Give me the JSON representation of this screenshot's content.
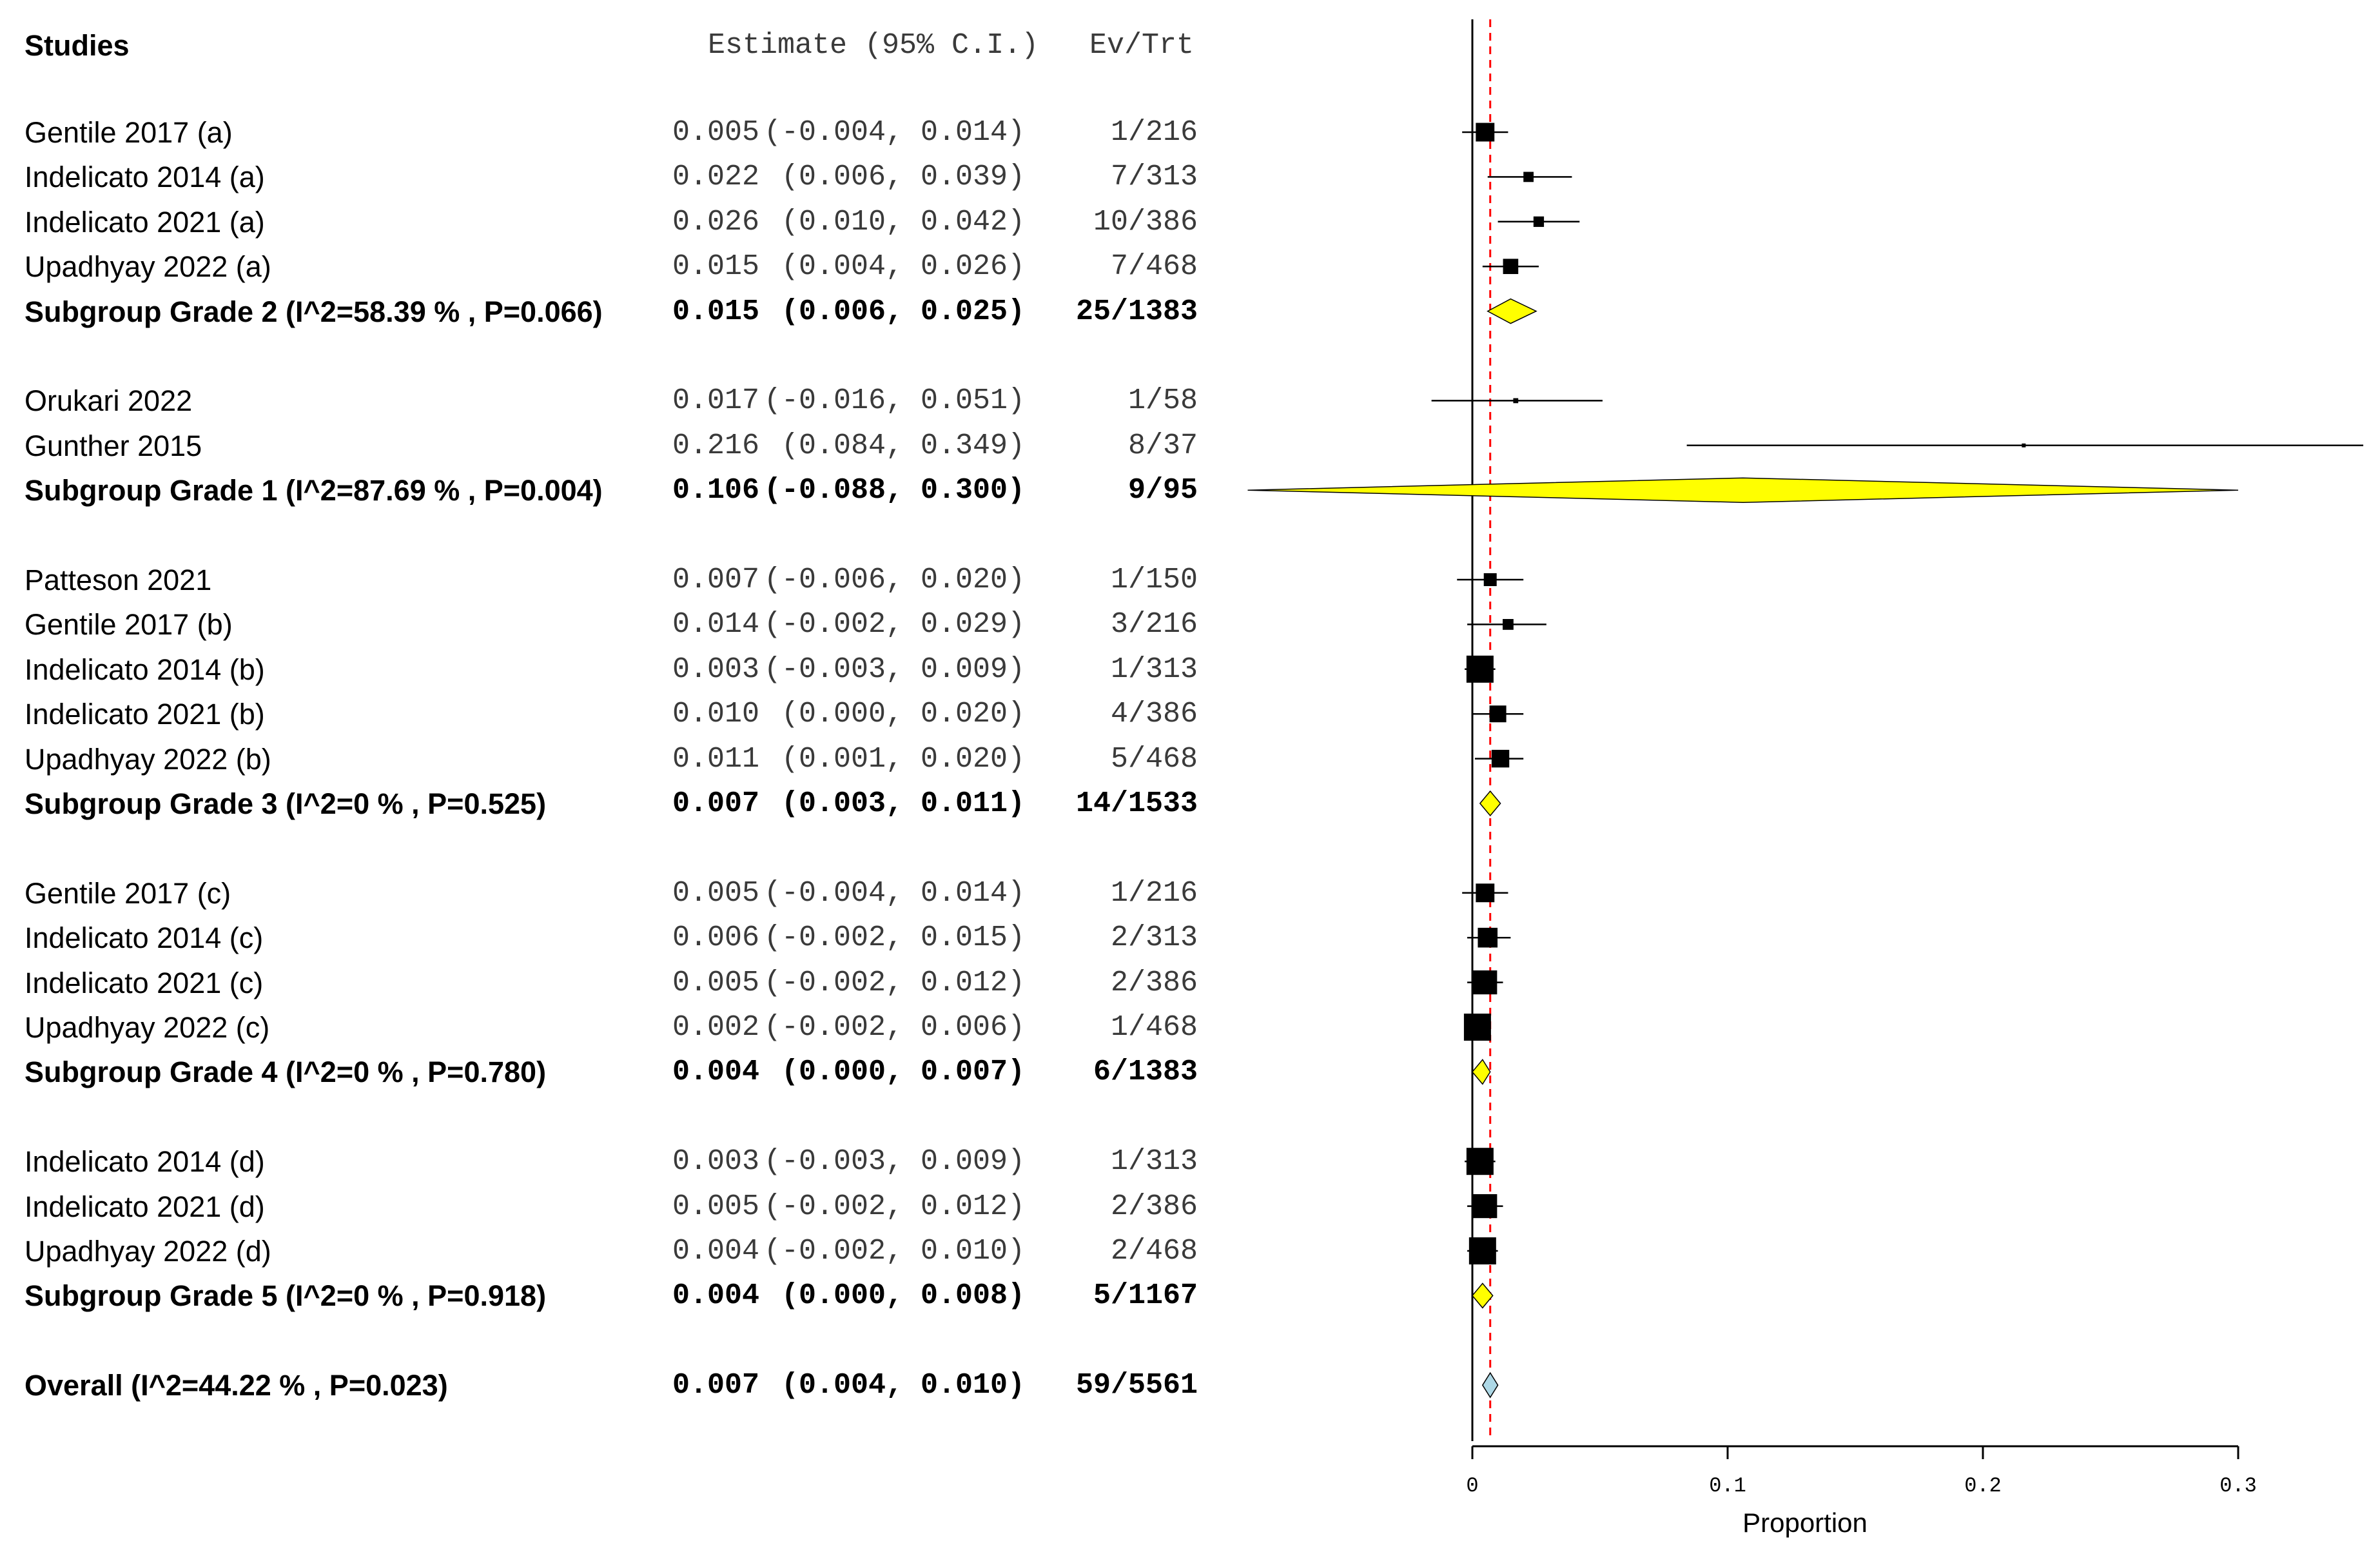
{
  "header": {
    "studies_label": "Studies",
    "estimate_label": "Estimate (95% C.I.)",
    "evtrt_label": "Ev/Trt"
  },
  "colors": {
    "subgroup_diamond": "#ffff00",
    "overall_diamond": "#add8e6",
    "reference_line": "#ff0000",
    "marker": "#000000"
  },
  "chart_data": {
    "type": "forest",
    "xlabel": "Proportion",
    "xlim": [
      0,
      0.3
    ],
    "xticks": [
      0,
      0.1,
      0.2,
      0.3
    ],
    "xtick_labels": [
      "0",
      "0.1",
      "0.2",
      "0.3"
    ],
    "reference_value": 0.007,
    "rows": [
      {
        "kind": "study",
        "label": "Gentile 2017 (a)",
        "est": 0.005,
        "lo": -0.004,
        "hi": 0.014,
        "est_text": "0.005",
        "ci_text": "(-0.004, 0.014)",
        "evtrt": "1/216"
      },
      {
        "kind": "study",
        "label": "Indelicato 2014 (a)",
        "est": 0.022,
        "lo": 0.006,
        "hi": 0.039,
        "est_text": "0.022",
        "ci_text": " (0.006, 0.039)",
        "evtrt": "7/313"
      },
      {
        "kind": "study",
        "label": "Indelicato 2021 (a)",
        "est": 0.026,
        "lo": 0.01,
        "hi": 0.042,
        "est_text": "0.026",
        "ci_text": " (0.010, 0.042)",
        "evtrt": "10/386"
      },
      {
        "kind": "study",
        "label": "Upadhyay 2022 (a)",
        "est": 0.015,
        "lo": 0.004,
        "hi": 0.026,
        "est_text": "0.015",
        "ci_text": " (0.004, 0.026)",
        "evtrt": "7/468"
      },
      {
        "kind": "subgroup",
        "label": "Subgroup Grade 2 (I^2=58.39 % , P=0.066)",
        "est": 0.015,
        "lo": 0.006,
        "hi": 0.025,
        "est_text": "0.015",
        "ci_text": " (0.006, 0.025)",
        "evtrt": "25/1383"
      },
      {
        "kind": "gap"
      },
      {
        "kind": "study",
        "label": "Orukari 2022",
        "est": 0.017,
        "lo": -0.016,
        "hi": 0.051,
        "est_text": "0.017",
        "ci_text": "(-0.016, 0.051)",
        "evtrt": "1/58"
      },
      {
        "kind": "study",
        "label": "Gunther 2015",
        "est": 0.216,
        "lo": 0.084,
        "hi": 0.349,
        "est_text": "0.216",
        "ci_text": " (0.084, 0.349)",
        "evtrt": "8/37"
      },
      {
        "kind": "subgroup",
        "label": "Subgroup Grade 1 (I^2=87.69 % , P=0.004)",
        "est": 0.106,
        "lo": -0.088,
        "hi": 0.3,
        "est_text": "0.106",
        "ci_text": "(-0.088, 0.300)",
        "evtrt": "9/95"
      },
      {
        "kind": "gap"
      },
      {
        "kind": "study",
        "label": "Patteson 2021",
        "est": 0.007,
        "lo": -0.006,
        "hi": 0.02,
        "est_text": "0.007",
        "ci_text": "(-0.006, 0.020)",
        "evtrt": "1/150"
      },
      {
        "kind": "study",
        "label": "Gentile 2017 (b)",
        "est": 0.014,
        "lo": -0.002,
        "hi": 0.029,
        "est_text": "0.014",
        "ci_text": "(-0.002, 0.029)",
        "evtrt": "3/216"
      },
      {
        "kind": "study",
        "label": "Indelicato 2014 (b)",
        "est": 0.003,
        "lo": -0.003,
        "hi": 0.009,
        "est_text": "0.003",
        "ci_text": "(-0.003, 0.009)",
        "evtrt": "1/313"
      },
      {
        "kind": "study",
        "label": "Indelicato 2021 (b)",
        "est": 0.01,
        "lo": 0.0,
        "hi": 0.02,
        "est_text": "0.010",
        "ci_text": " (0.000, 0.020)",
        "evtrt": "4/386"
      },
      {
        "kind": "study",
        "label": "Upadhyay 2022 (b)",
        "est": 0.011,
        "lo": 0.001,
        "hi": 0.02,
        "est_text": "0.011",
        "ci_text": " (0.001, 0.020)",
        "evtrt": "5/468"
      },
      {
        "kind": "subgroup",
        "label": "Subgroup Grade 3 (I^2=0 % , P=0.525)",
        "est": 0.007,
        "lo": 0.003,
        "hi": 0.011,
        "est_text": "0.007",
        "ci_text": " (0.003, 0.011)",
        "evtrt": "14/1533"
      },
      {
        "kind": "gap"
      },
      {
        "kind": "study",
        "label": "Gentile 2017 (c)",
        "est": 0.005,
        "lo": -0.004,
        "hi": 0.014,
        "est_text": "0.005",
        "ci_text": "(-0.004, 0.014)",
        "evtrt": "1/216"
      },
      {
        "kind": "study",
        "label": "Indelicato 2014 (c)",
        "est": 0.006,
        "lo": -0.002,
        "hi": 0.015,
        "est_text": "0.006",
        "ci_text": "(-0.002, 0.015)",
        "evtrt": "2/313"
      },
      {
        "kind": "study",
        "label": "Indelicato 2021 (c)",
        "est": 0.005,
        "lo": -0.002,
        "hi": 0.012,
        "est_text": "0.005",
        "ci_text": "(-0.002, 0.012)",
        "evtrt": "2/386"
      },
      {
        "kind": "study",
        "label": "Upadhyay 2022 (c)",
        "est": 0.002,
        "lo": -0.002,
        "hi": 0.006,
        "est_text": "0.002",
        "ci_text": "(-0.002, 0.006)",
        "evtrt": "1/468"
      },
      {
        "kind": "subgroup",
        "label": "Subgroup Grade 4 (I^2=0 % , P=0.780)",
        "est": 0.004,
        "lo": 0.0,
        "hi": 0.007,
        "est_text": "0.004",
        "ci_text": " (0.000, 0.007)",
        "evtrt": "6/1383"
      },
      {
        "kind": "gap"
      },
      {
        "kind": "study",
        "label": "Indelicato 2014 (d)",
        "est": 0.003,
        "lo": -0.003,
        "hi": 0.009,
        "est_text": "0.003",
        "ci_text": "(-0.003, 0.009)",
        "evtrt": "1/313"
      },
      {
        "kind": "study",
        "label": "Indelicato 2021 (d)",
        "est": 0.005,
        "lo": -0.002,
        "hi": 0.012,
        "est_text": "0.005",
        "ci_text": "(-0.002, 0.012)",
        "evtrt": "2/386"
      },
      {
        "kind": "study",
        "label": "Upadhyay 2022 (d)",
        "est": 0.004,
        "lo": -0.002,
        "hi": 0.01,
        "est_text": "0.004",
        "ci_text": "(-0.002, 0.010)",
        "evtrt": "2/468"
      },
      {
        "kind": "subgroup",
        "label": "Subgroup Grade 5 (I^2=0 % , P=0.918)",
        "est": 0.004,
        "lo": 0.0,
        "hi": 0.008,
        "est_text": "0.004",
        "ci_text": " (0.000, 0.008)",
        "evtrt": "5/1167"
      },
      {
        "kind": "gap"
      },
      {
        "kind": "overall",
        "label": "Overall (I^2=44.22 % , P=0.023)",
        "est": 0.007,
        "lo": 0.004,
        "hi": 0.01,
        "est_text": "0.007",
        "ci_text": " (0.004, 0.010)",
        "evtrt": "59/5561"
      }
    ]
  }
}
